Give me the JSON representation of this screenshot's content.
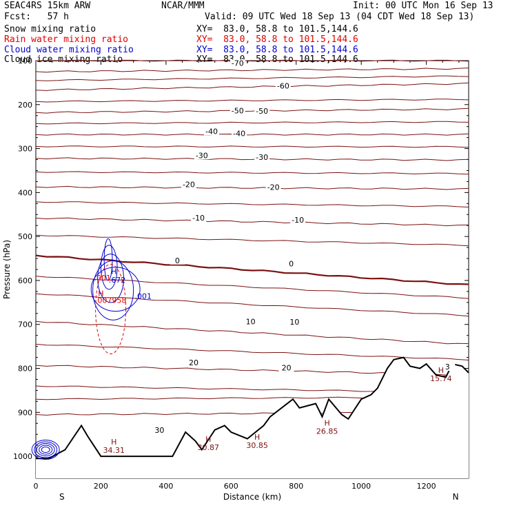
{
  "header": {
    "model": "SEAC4RS 15km ARW",
    "fcst": "Fcst:   57 h",
    "org": "NCAR/MMM",
    "init": "Init: 00 UTC Mon 16 Sep 13",
    "valid": "Valid: 09 UTC Wed 18 Sep 13 (04 CDT Wed 18 Sep 13)",
    "fields": [
      {
        "label": "Snow mixing ratio",
        "xy": "XY=  83.0, 58.8 to 101.5,144.6",
        "color": "#000000"
      },
      {
        "label": "Rain water mixing ratio",
        "xy": "XY=  83.0, 58.8 to 101.5,144.6",
        "color": "#e00000"
      },
      {
        "label": "Cloud water mixing ratio",
        "xy": "XY=  83.0, 58.8 to 101.5,144.6",
        "color": "#0000cc"
      },
      {
        "label": "Cloud ice mixing ratio",
        "xy": "XY=  83.0, 58.8 to 101.5,144.6",
        "color": "#000000"
      }
    ]
  },
  "chart_data": {
    "type": "contour cross-section",
    "xlabel": "Distance (km)",
    "ylabel": "Pressure (hPa)",
    "xlim": [
      0,
      1330
    ],
    "ylim": [
      1050,
      100
    ],
    "xticks": [
      "0",
      "200",
      "400",
      "600",
      "800",
      "1000",
      "1200"
    ],
    "yticks": [
      "200",
      "300",
      "400",
      "500",
      "600",
      "700",
      "800",
      "900",
      "1000"
    ],
    "ytick_top_label": "100",
    "left_end": "S",
    "right_end": "N",
    "temperature_contours": [
      {
        "label": "-70",
        "x": [
          0,
          1330
        ],
        "y": [
          125,
          118
        ]
      },
      {
        "label": "-60",
        "x": [
          0,
          1330
        ],
        "y": [
          167,
          152
        ]
      },
      {
        "label": "-50",
        "x": [
          0,
          1330
        ],
        "y": [
          218,
          210
        ]
      },
      {
        "label": "-40",
        "x": [
          0,
          1330
        ],
        "y": [
          268,
          268
        ]
      },
      {
        "label": "-30",
        "x": [
          0,
          1330
        ],
        "y": [
          322,
          326
        ]
      },
      {
        "label": "-20",
        "x": [
          0,
          1330
        ],
        "y": [
          387,
          392
        ]
      },
      {
        "label": "-10",
        "x": [
          0,
          1330
        ],
        "y": [
          458,
          475
        ]
      },
      {
        "label": "0",
        "x": [
          0,
          1330
        ],
        "y": [
          543,
          610
        ]
      },
      {
        "label": "10",
        "x": [
          0,
          1330
        ],
        "y": [
          693,
          745
        ]
      },
      {
        "label": "20",
        "x": [
          0,
          1330
        ],
        "y": [
          793,
          815
        ]
      },
      {
        "label": "30",
        "x": [
          0,
          1330
        ],
        "y": [
          905,
          900
        ]
      }
    ],
    "labels_placed": [
      {
        "text": "-70",
        "x": 620,
        "p": 110
      },
      {
        "text": "-60",
        "x": 760,
        "p": 162
      },
      {
        "text": "-50",
        "x": 620,
        "p": 218
      },
      {
        "text": "-50",
        "x": 695,
        "p": 219
      },
      {
        "text": "-40",
        "x": 540,
        "p": 265
      },
      {
        "text": "-40",
        "x": 625,
        "p": 270
      },
      {
        "text": "-30",
        "x": 510,
        "p": 320
      },
      {
        "text": "-30",
        "x": 695,
        "p": 324
      },
      {
        "text": "-20",
        "x": 470,
        "p": 386
      },
      {
        "text": "-20",
        "x": 730,
        "p": 392
      },
      {
        "text": "-10",
        "x": 500,
        "p": 462
      },
      {
        "text": "-10",
        "x": 805,
        "p": 467
      },
      {
        "text": "0",
        "x": 435,
        "p": 559
      },
      {
        "text": "0",
        "x": 785,
        "p": 566
      },
      {
        "text": "10",
        "x": 660,
        "p": 698
      },
      {
        "text": "10",
        "x": 795,
        "p": 699
      },
      {
        "text": "20",
        "x": 485,
        "p": 791
      },
      {
        "text": "20",
        "x": 770,
        "p": 803
      },
      {
        "text": "30",
        "x": 380,
        "p": 945
      },
      {
        "text": "3",
        "x": 1265,
        "p": 801
      }
    ],
    "highs": [
      {
        "label": "H",
        "value": "34.31",
        "x": 240,
        "p": 973
      },
      {
        "label": "H",
        "value": "30.87",
        "x": 530,
        "p": 967
      },
      {
        "label": "H",
        "value": "30.85",
        "x": 680,
        "p": 962
      },
      {
        "label": "H",
        "value": "26.85",
        "x": 895,
        "p": 930
      },
      {
        "label": "H",
        "value": "15.74",
        "x": 1245,
        "p": 810
      }
    ],
    "rain_water": {
      "labels": [
        ".001",
        ".007958"
      ],
      "high": "H"
    },
    "cloud_water": {
      "labels": [
        ".001",
        ".672"
      ],
      "high": "H"
    },
    "terrain_surface_hPa": {
      "x": [
        0,
        40,
        90,
        140,
        160,
        200,
        300,
        420,
        460,
        490,
        510,
        550,
        580,
        600,
        650,
        700,
        720,
        790,
        810,
        860,
        880,
        900,
        940,
        960,
        1000,
        1030,
        1050,
        1080,
        1100,
        1130,
        1150,
        1180,
        1200,
        1230,
        1260,
        1280,
        1310,
        1330
      ],
      "y": [
        1005,
        1005,
        985,
        930,
        955,
        1000,
        1000,
        1000,
        945,
        965,
        985,
        940,
        930,
        945,
        960,
        930,
        910,
        870,
        890,
        880,
        910,
        870,
        905,
        915,
        870,
        860,
        845,
        800,
        780,
        775,
        795,
        800,
        790,
        815,
        820,
        790,
        795,
        810
      ]
    }
  }
}
